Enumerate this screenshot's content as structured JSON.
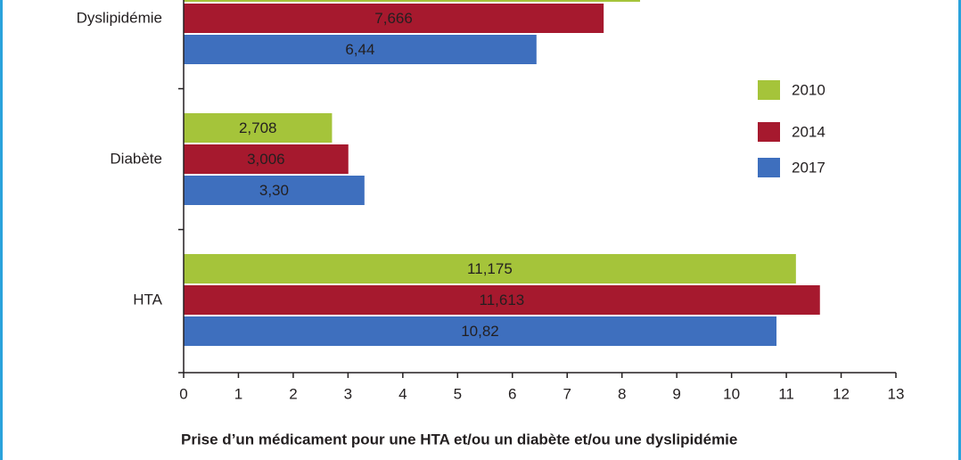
{
  "chart_data": {
    "type": "bar",
    "orientation": "horizontal",
    "categories": [
      "Dyslipidémie",
      "Diabète",
      "HTA"
    ],
    "series": [
      {
        "name": "2010",
        "color": "#a5c43a",
        "values": [
          8.33,
          2.708,
          11.175
        ],
        "value_labels": [
          null,
          "2,708",
          "11,175"
        ]
      },
      {
        "name": "2014",
        "color": "#a6192e",
        "values": [
          7.666,
          3.006,
          11.613
        ],
        "value_labels": [
          "7,666",
          "3,006",
          "11,613"
        ]
      },
      {
        "name": "2017",
        "color": "#3e6fbe",
        "values": [
          6.44,
          3.3,
          10.82
        ],
        "value_labels": [
          "6,44",
          "3,30",
          "10,82"
        ]
      }
    ],
    "xlim": [
      0,
      13
    ],
    "xticks": [
      0,
      1,
      2,
      3,
      4,
      5,
      6,
      7,
      8,
      9,
      10,
      11,
      12,
      13
    ],
    "xlabel": "Prise d’un médicament pour une HTA et/ou un diabète et/ou une dyslipidémie",
    "legend": "right"
  }
}
